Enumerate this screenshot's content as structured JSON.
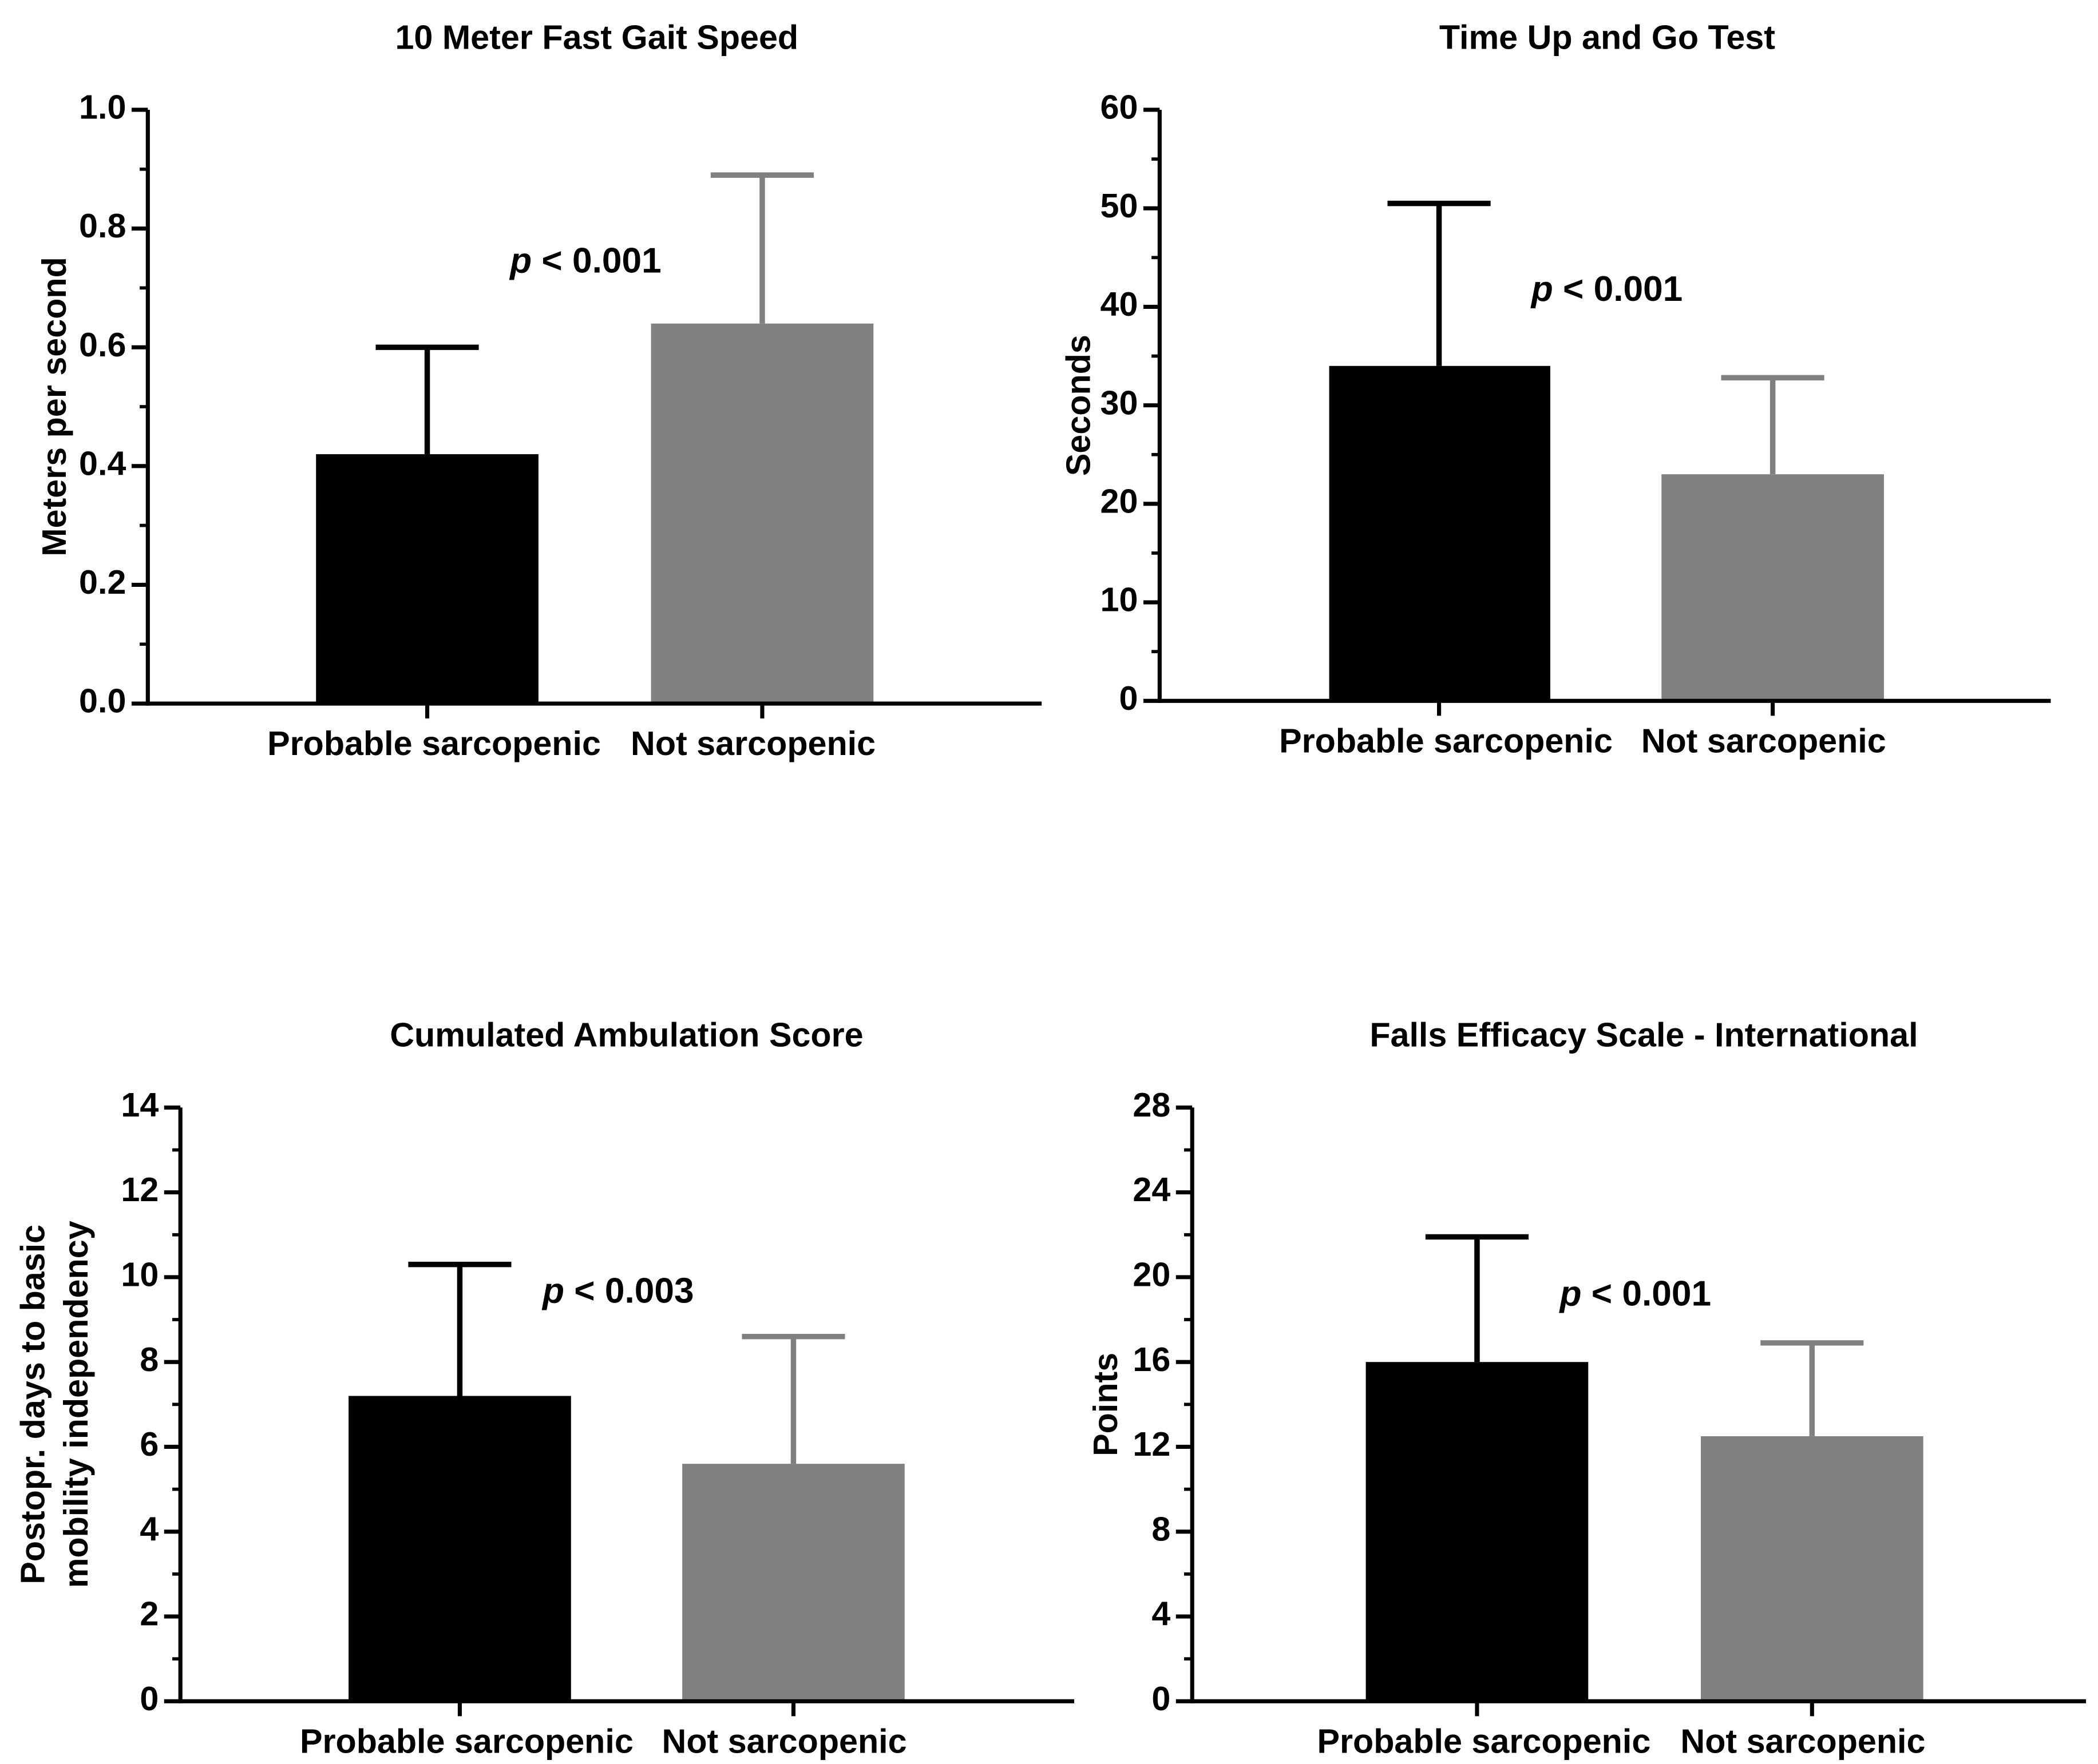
{
  "colors": {
    "probable": "#000000",
    "not": "#808080",
    "axis": "#000000"
  },
  "chart_data": [
    {
      "type": "bar",
      "title": "10 Meter Fast Gait Speed",
      "ylabel": [
        "Meters per second"
      ],
      "xlabel": "",
      "categories": [
        "Probable sarcopenic",
        "Not sarcopenic"
      ],
      "values": [
        0.42,
        0.64
      ],
      "error_upper": [
        0.6,
        0.89
      ],
      "ylim": [
        0,
        1.0
      ],
      "yticks": [
        0,
        0.2,
        0.4,
        0.6,
        0.8,
        1.0
      ],
      "ytick_labels": [
        "0.0",
        "0.2",
        "0.4",
        "0.6",
        "0.8",
        "1.0"
      ],
      "minor_per_major": 2,
      "annotation": {
        "p": "p",
        "rest": " < 0.001"
      }
    },
    {
      "type": "bar",
      "title": "Time Up and Go Test",
      "ylabel": [
        "Seconds"
      ],
      "xlabel": "",
      "categories": [
        "Probable sarcopenic",
        "Not sarcopenic"
      ],
      "values": [
        34,
        23
      ],
      "error_upper": [
        50.5,
        32.8
      ],
      "ylim": [
        0,
        60
      ],
      "yticks": [
        0,
        10,
        20,
        30,
        40,
        50,
        60
      ],
      "ytick_labels": [
        "0",
        "10",
        "20",
        "30",
        "40",
        "50",
        "60"
      ],
      "minor_per_major": 2,
      "annotation": {
        "p": "p",
        "rest": " < 0.001"
      }
    },
    {
      "type": "bar",
      "title": "Cumulated Ambulation Score",
      "ylabel": [
        "Postopr. days to basic",
        "mobility independency"
      ],
      "xlabel": "",
      "categories": [
        "Probable sarcopenic",
        "Not sarcopenic"
      ],
      "values": [
        7.2,
        5.6
      ],
      "error_upper": [
        10.3,
        8.6
      ],
      "ylim": [
        0,
        14
      ],
      "yticks": [
        0,
        2,
        4,
        6,
        8,
        10,
        12,
        14
      ],
      "ytick_labels": [
        "0",
        "2",
        "4",
        "6",
        "8",
        "10",
        "12",
        "14"
      ],
      "minor_per_major": 2,
      "annotation": {
        "p": "p",
        "rest": " < 0.003"
      }
    },
    {
      "type": "bar",
      "title": "Falls Efficacy Scale - International",
      "ylabel": [
        "Points"
      ],
      "xlabel": "",
      "categories": [
        "Probable sarcopenic",
        "Not sarcopenic"
      ],
      "values": [
        16,
        12.5
      ],
      "error_upper": [
        21.9,
        16.9
      ],
      "ylim": [
        0,
        28
      ],
      "yticks": [
        0,
        4,
        8,
        12,
        16,
        20,
        24,
        28
      ],
      "ytick_labels": [
        "0",
        "4",
        "8",
        "12",
        "16",
        "20",
        "24",
        "28"
      ],
      "minor_per_major": 2,
      "annotation": {
        "p": "p",
        "rest": " < 0.001"
      }
    }
  ]
}
